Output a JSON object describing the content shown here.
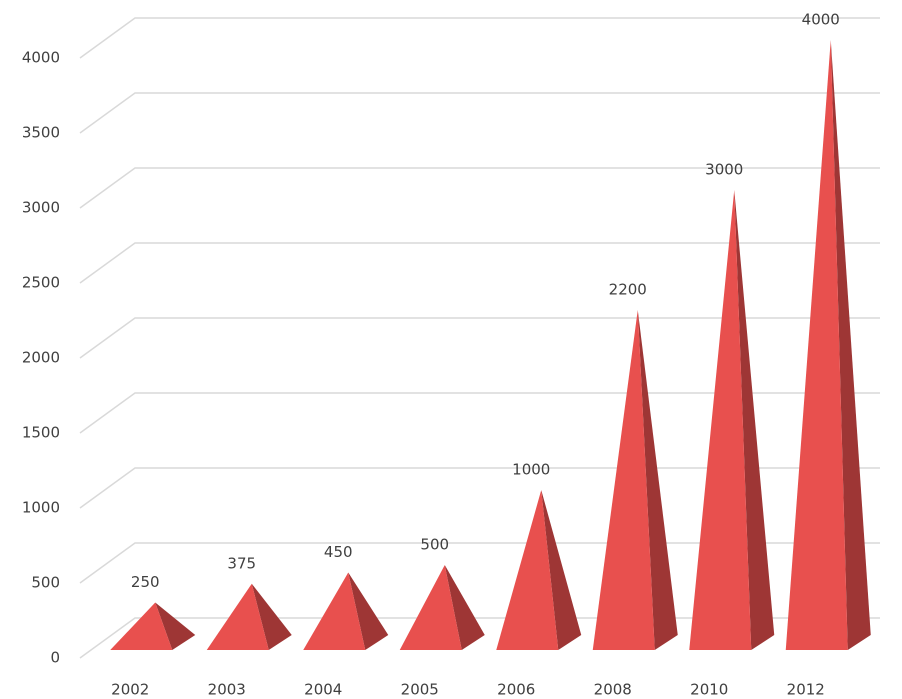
{
  "chart_data": {
    "type": "pyramid",
    "categories": [
      "2002",
      "2003",
      "2004",
      "2005",
      "2006",
      "2008",
      "2010",
      "2012"
    ],
    "values": [
      250,
      375,
      450,
      500,
      1000,
      2200,
      3000,
      4000
    ],
    "color": "#e8504e",
    "ylim": [
      0,
      4000
    ],
    "yticks": [
      0,
      500,
      1000,
      1500,
      2000,
      2500,
      3000,
      3500,
      4000
    ],
    "grid": true
  }
}
